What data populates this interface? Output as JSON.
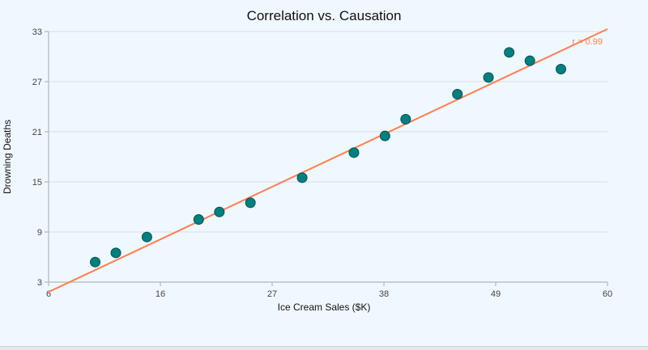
{
  "chart_data": {
    "type": "scatter",
    "title": "Correlation vs. Causation",
    "xlabel": "Ice Cream Sales ($K)",
    "ylabel": "Drowning Deaths",
    "xlim": [
      6,
      60
    ],
    "ylim": [
      3,
      33
    ],
    "x_ticks": [
      "6",
      "16",
      "27",
      "38",
      "49",
      "60"
    ],
    "y_ticks": [
      "3",
      "9",
      "15",
      "21",
      "27",
      "33"
    ],
    "grid": "horizontal",
    "points": [
      {
        "x": 10.5,
        "y": 5.4
      },
      {
        "x": 12.5,
        "y": 6.5
      },
      {
        "x": 15.5,
        "y": 8.4
      },
      {
        "x": 20.5,
        "y": 10.5
      },
      {
        "x": 22.5,
        "y": 11.4
      },
      {
        "x": 25.5,
        "y": 12.5
      },
      {
        "x": 30.5,
        "y": 15.5
      },
      {
        "x": 35.5,
        "y": 18.5
      },
      {
        "x": 38.5,
        "y": 20.5
      },
      {
        "x": 40.5,
        "y": 22.5
      },
      {
        "x": 45.5,
        "y": 25.5
      },
      {
        "x": 48.5,
        "y": 27.5
      },
      {
        "x": 50.5,
        "y": 30.5
      },
      {
        "x": 52.5,
        "y": 29.5
      },
      {
        "x": 55.5,
        "y": 28.5
      }
    ],
    "trendline": {
      "x": [
        6,
        60
      ],
      "y": [
        2.4,
        33.3
      ]
    },
    "annotation": "r = 0.99",
    "colors": {
      "point": "#008080",
      "point_stroke": "#0b4f4f",
      "trendline": "#ff7f50",
      "grid": "#e3e6ea",
      "axis": "#bfc3c7",
      "background": "#f0f8ff"
    }
  }
}
